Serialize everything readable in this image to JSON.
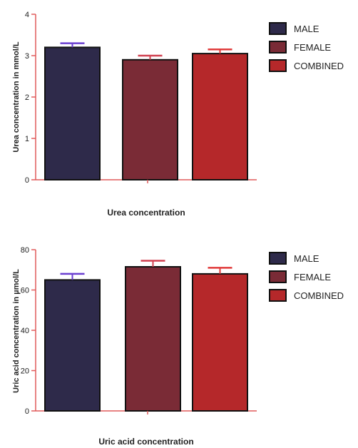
{
  "chart_data": [
    {
      "type": "bar",
      "categories": [
        "MALE",
        "FEMALE",
        "COMBINED"
      ],
      "values": [
        3.2,
        2.9,
        3.05
      ],
      "errors": [
        0.1,
        0.1,
        0.1
      ],
      "title": "",
      "xlabel": "Urea concentration",
      "ylabel": "Urea concentration in mmol/L",
      "ylim": [
        0,
        4
      ],
      "yticks": [
        "0",
        "1",
        "2",
        "3",
        "4"
      ],
      "legend": [
        "MALE",
        "FEMALE",
        "COMBINED"
      ],
      "legend_position": "top-right",
      "grid": false
    },
    {
      "type": "bar",
      "categories": [
        "MALE",
        "FEMALE",
        "COMBINED"
      ],
      "values": [
        65,
        71.5,
        68
      ],
      "errors": [
        3,
        3,
        3
      ],
      "title": "",
      "xlabel": "Uric acid concentration",
      "ylabel": "Uric acid concentration in µmol/L",
      "ylim": [
        0,
        80
      ],
      "yticks": [
        "0",
        "20",
        "40",
        "60",
        "80"
      ],
      "legend": [
        "MALE",
        "FEMALE",
        "COMBINED"
      ],
      "legend_position": "top-right",
      "grid": false
    }
  ],
  "colors": {
    "bars": [
      "#2e2a4a",
      "#7a2b36",
      "#b5282a"
    ],
    "axis": "#e05a5a",
    "error_bars": [
      "#6a3fd0",
      "#d04050",
      "#e03a3a"
    ],
    "bar_outline": "#111111"
  }
}
